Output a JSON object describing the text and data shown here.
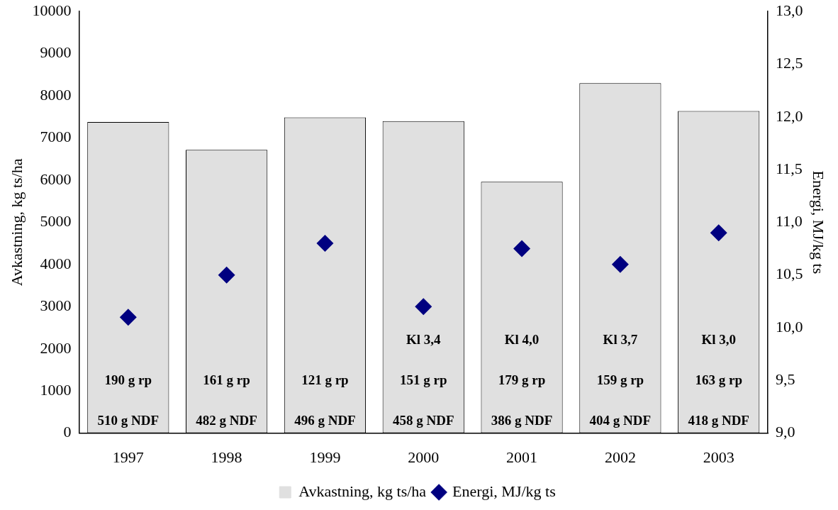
{
  "chart_data": {
    "type": "bar",
    "categories": [
      "1997",
      "1998",
      "1999",
      "2000",
      "2001",
      "2002",
      "2003"
    ],
    "series": [
      {
        "name": "Avkastning, kg ts/ha",
        "color": "#e0e0e0",
        "values": [
          7380,
          6720,
          7490,
          7400,
          5960,
          8300,
          7640
        ]
      },
      {
        "name": "Energi, MJ/kg ts",
        "type": "scatter",
        "axis": "y2",
        "color": "#000080",
        "values": [
          10.1,
          10.5,
          10.8,
          10.2,
          10.75,
          10.6,
          10.9
        ]
      }
    ],
    "ylabel": "Avkastning, kg ts/ha",
    "y2label": "Energi, MJ/kg ts",
    "ylim": [
      0,
      10000
    ],
    "yticks": [
      0,
      1000,
      2000,
      3000,
      4000,
      5000,
      6000,
      7000,
      8000,
      9000,
      10000
    ],
    "y2lim": [
      9,
      13
    ],
    "y2ticks": [
      {
        "value": 9,
        "label": "9,0"
      },
      {
        "value": 9.5,
        "label": "9,5"
      },
      {
        "value": 10,
        "label": "10,0"
      },
      {
        "value": 10.5,
        "label": "10,5"
      },
      {
        "value": 11,
        "label": "11,0"
      },
      {
        "value": 11.5,
        "label": "11,5"
      },
      {
        "value": 12,
        "label": "12,0"
      },
      {
        "value": 12.5,
        "label": "12,5"
      },
      {
        "value": 13,
        "label": "13,0"
      }
    ],
    "marker": "diamond",
    "legend": "bottom",
    "grid": false,
    "annotations": [
      "510 g NDF",
      "482 g NDF",
      "496 g NDF",
      "458 g NDF",
      "386 g NDF",
      "404 g NDF",
      "418 g NDF",
      "190 g rp",
      "161 g rp",
      "121 g rp",
      "151 g rp",
      "179 g rp",
      "159 g rp",
      "163 g rp",
      "Kl 3,4",
      "Kl 4,0",
      "Kl 3,7",
      "Kl 3,0"
    ]
  }
}
